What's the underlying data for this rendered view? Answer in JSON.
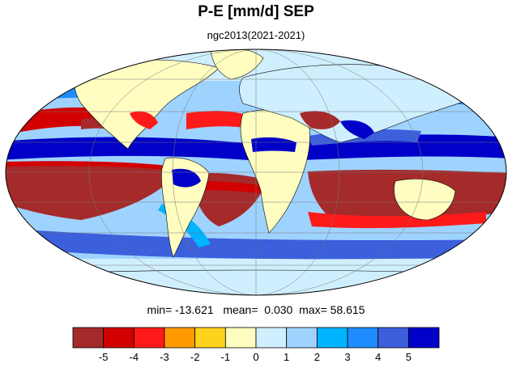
{
  "title": "P-E [mm/d] SEP",
  "subtitle": "ngc2013(2021-2021)",
  "stats": {
    "min_label": "min=",
    "min": "-13.621",
    "mean_label": "mean=",
    "mean": "0.030",
    "max_label": "max=",
    "max": "58.615"
  },
  "colorbar": {
    "colors": [
      "#a52a2a",
      "#d20000",
      "#ff1a1a",
      "#ff9b00",
      "#ffd21e",
      "#fffdc0",
      "#cfefff",
      "#9fd3ff",
      "#00b4ff",
      "#1e8cff",
      "#3c5fdc",
      "#0000c8"
    ],
    "ticks": [
      "-5",
      "-4",
      "-3",
      "-2",
      "-1",
      "0",
      "1",
      "2",
      "3",
      "4",
      "5"
    ]
  }
}
